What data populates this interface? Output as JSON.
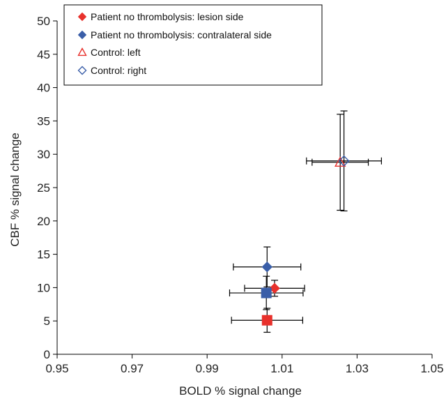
{
  "chart_data": {
    "type": "scatter",
    "title": "",
    "xlabel": "BOLD % signal change",
    "ylabel": "CBF % signal change",
    "xlim": [
      0.95,
      1.05
    ],
    "ylim": [
      0,
      50
    ],
    "x_ticks": [
      "0.95",
      "0.97",
      "0.99",
      "1.01",
      "1.03",
      "1.05"
    ],
    "y_ticks": [
      "0",
      "5",
      "10",
      "15",
      "20",
      "25",
      "30",
      "35",
      "40",
      "45",
      "50"
    ],
    "grid": false,
    "legend_position": "top-left",
    "legend": [
      {
        "label": "Patient no thrombolysis: lesion side",
        "marker": "diamond-filled",
        "color": "#e8312c"
      },
      {
        "label": "Patient no thrombolysis: contralateral side",
        "marker": "diamond-filled",
        "color": "#3a5ea8"
      },
      {
        "label": "Control: left",
        "marker": "triangle-open",
        "color": "#e8312c"
      },
      {
        "label": "Control: right",
        "marker": "diamond-open",
        "color": "#3a5ea8"
      }
    ],
    "points": [
      {
        "x": 1.008,
        "y": 9.9,
        "x_err": 0.008,
        "y_err": 1.2,
        "marker": "diamond-filled",
        "color": "#e8312c"
      },
      {
        "x": 1.006,
        "y": 13.1,
        "x_err": 0.009,
        "y_err": 3.0,
        "marker": "diamond-filled",
        "color": "#3a5ea8"
      },
      {
        "x": 1.0255,
        "y": 28.8,
        "x_err": 0.0075,
        "y_err": 7.2,
        "marker": "triangle-open",
        "color": "#e8312c"
      },
      {
        "x": 1.0265,
        "y": 29.0,
        "x_err": 0.01,
        "y_err": 7.5,
        "marker": "diamond-open",
        "color": "#3a5ea8"
      },
      {
        "x": 1.006,
        "y": 5.1,
        "x_err": 0.0095,
        "y_err": 1.8,
        "marker": "square-filled",
        "color": "#e8312c"
      },
      {
        "x": 1.0058,
        "y": 9.2,
        "x_err": 0.0098,
        "y_err": 2.5,
        "marker": "square-filled",
        "color": "#3a5ea8"
      }
    ]
  }
}
